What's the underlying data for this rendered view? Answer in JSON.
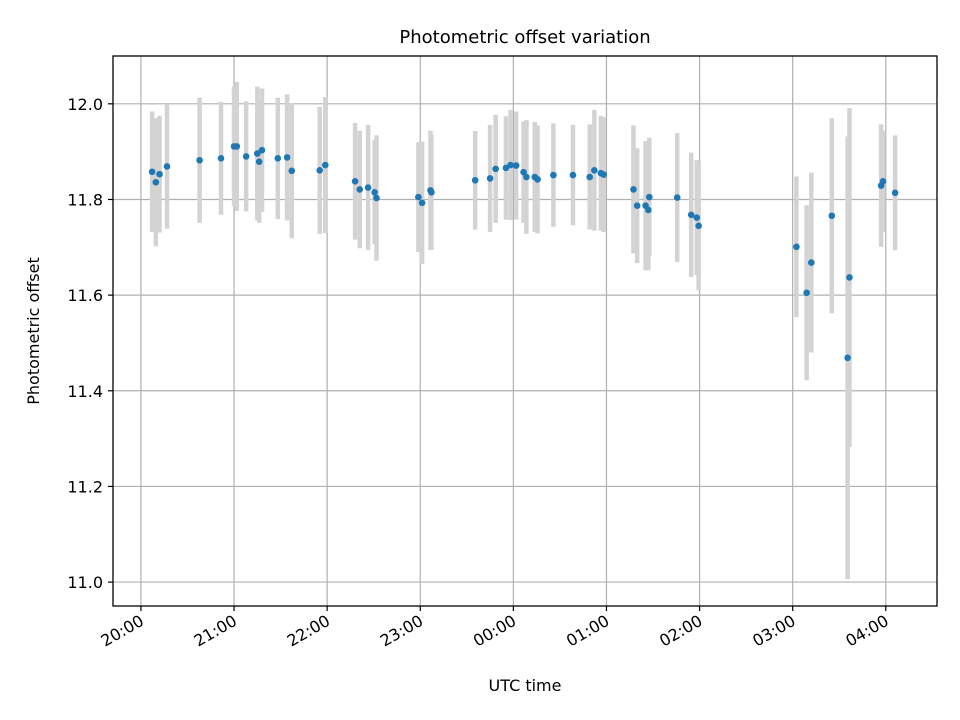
{
  "chart_data": {
    "type": "scatter",
    "title": "Photometric offset variation",
    "xlabel": "UTC time",
    "ylabel": "Photometric offset",
    "grid": true,
    "xlim_hours": [
      19.7,
      28.55
    ],
    "ylim": [
      10.95,
      12.1
    ],
    "x_ticks": [
      {
        "h": 20,
        "label": "20:00"
      },
      {
        "h": 21,
        "label": "21:00"
      },
      {
        "h": 22,
        "label": "22:00"
      },
      {
        "h": 23,
        "label": "23:00"
      },
      {
        "h": 24,
        "label": "00:00"
      },
      {
        "h": 25,
        "label": "01:00"
      },
      {
        "h": 26,
        "label": "02:00"
      },
      {
        "h": 27,
        "label": "03:00"
      },
      {
        "h": 28,
        "label": "04:00"
      }
    ],
    "y_ticks": [
      {
        "v": 11.0,
        "label": "11.0"
      },
      {
        "v": 11.2,
        "label": "11.2"
      },
      {
        "v": 11.4,
        "label": "11.4"
      },
      {
        "v": 11.6,
        "label": "11.6"
      },
      {
        "v": 11.8,
        "label": "11.8"
      },
      {
        "v": 12.0,
        "label": "12.0"
      }
    ],
    "series": [
      {
        "marker_color": "#1f77b4",
        "error_color": "#d3d3d3",
        "x_hours": [
          20.12,
          20.16,
          20.2,
          20.28,
          20.63,
          20.86,
          21.0,
          21.03,
          21.13,
          21.25,
          21.27,
          21.3,
          21.47,
          21.57,
          21.62,
          21.92,
          21.98,
          22.3,
          22.35,
          22.44,
          22.51,
          22.53,
          22.98,
          23.02,
          23.11,
          23.12,
          23.59,
          23.75,
          23.81,
          23.92,
          23.97,
          24.03,
          24.11,
          24.14,
          24.23,
          24.26,
          24.43,
          24.64,
          24.82,
          24.87,
          24.94,
          24.97,
          25.29,
          25.33,
          25.42,
          25.45,
          25.46,
          25.76,
          25.91,
          25.97,
          25.99,
          27.04,
          27.15,
          27.2,
          27.42,
          27.59,
          27.61,
          27.95,
          27.97,
          28.1
        ],
        "y": [
          11.858,
          11.836,
          11.853,
          11.869,
          11.882,
          11.886,
          11.911,
          11.911,
          11.89,
          11.896,
          11.879,
          11.903,
          11.886,
          11.888,
          11.86,
          11.861,
          11.872,
          11.838,
          11.821,
          11.825,
          11.815,
          11.803,
          11.805,
          11.793,
          11.819,
          11.815,
          11.84,
          11.844,
          11.864,
          11.866,
          11.872,
          11.871,
          11.857,
          11.847,
          11.847,
          11.842,
          11.851,
          11.851,
          11.847,
          11.861,
          11.855,
          11.852,
          11.821,
          11.787,
          11.787,
          11.778,
          11.805,
          11.804,
          11.768,
          11.762,
          11.745,
          11.701,
          11.605,
          11.668,
          11.766,
          11.469,
          11.637,
          11.829,
          11.838,
          11.814
        ],
        "y_err": [
          0.126,
          0.134,
          0.122,
          0.13,
          0.131,
          0.118,
          0.125,
          0.135,
          0.115,
          0.14,
          0.128,
          0.129,
          0.127,
          0.132,
          0.141,
          0.133,
          0.142,
          0.122,
          0.123,
          0.131,
          0.109,
          0.131,
          0.115,
          0.128,
          0.125,
          0.12,
          0.103,
          0.112,
          0.113,
          0.108,
          0.115,
          0.113,
          0.106,
          0.119,
          0.115,
          0.113,
          0.108,
          0.105,
          0.11,
          0.126,
          0.12,
          0.12,
          0.134,
          0.12,
          0.135,
          0.126,
          0.124,
          0.135,
          0.13,
          0.12,
          0.135,
          0.147,
          0.183,
          0.188,
          0.204,
          0.463,
          0.354,
          0.128,
          0.106,
          0.12
        ]
      }
    ]
  }
}
